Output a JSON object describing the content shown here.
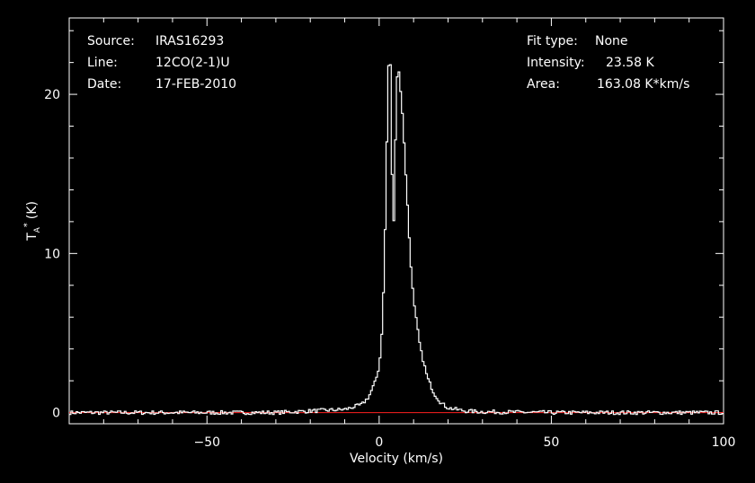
{
  "info": {
    "source_label": "Source:",
    "source_value": "IRAS16293",
    "line_label": "Line:",
    "line_value": "12CO(2-1)U",
    "date_label": "Date:",
    "date_value": "17-FEB-2010",
    "fit_label": "Fit type:",
    "fit_value": "None",
    "intensity_label": "Intensity:",
    "intensity_value": "23.58 K",
    "area_label": "Area:",
    "area_value": "163.08 K*km/s"
  },
  "colors": {
    "background": "#000000",
    "foreground": "#ffffff",
    "baseline": "#ff2020"
  },
  "chart_data": {
    "type": "line",
    "xlabel": "Velocity (km/s)",
    "ylabel_main": "T",
    "ylabel_sub": "A",
    "ylabel_sup": "*",
    "ylabel_unit": "(K)",
    "xlim": [
      -90,
      100
    ],
    "ylim": [
      -0.7,
      24.8
    ],
    "xticks": [
      -50,
      0,
      50,
      100
    ],
    "xtick_labels": [
      "−50",
      "0",
      "50",
      "100"
    ],
    "yticks": [
      0,
      10,
      20
    ],
    "ytick_labels": [
      "0",
      "10",
      "20"
    ],
    "grid": false,
    "baseline_y": 0,
    "series": [
      {
        "x": [
          -90,
          -60,
          -30,
          -10,
          -5,
          -3,
          -1,
          0,
          0.5,
          1,
          1.5,
          2,
          2.5,
          3,
          3.5,
          4,
          4.5,
          5,
          5.5,
          6,
          7,
          8,
          9,
          10,
          12,
          14,
          16,
          18,
          20,
          25,
          30,
          50,
          100
        ],
        "y": [
          0.0,
          0.0,
          0.0,
          0.2,
          0.5,
          1.0,
          2.0,
          2.9,
          4.0,
          6.0,
          9.0,
          14.0,
          20.0,
          23.6,
          20.0,
          10.0,
          14.0,
          20.5,
          21.8,
          21.0,
          18.0,
          14.0,
          10.0,
          7.0,
          4.0,
          2.2,
          1.2,
          0.6,
          0.3,
          0.1,
          0.05,
          0.0,
          0.0
        ]
      }
    ],
    "noise_amplitude": 0.12
  }
}
